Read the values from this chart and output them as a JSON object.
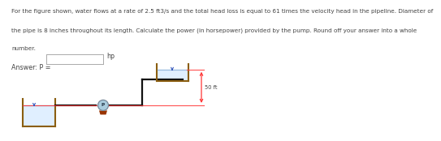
{
  "title_line1": "For the figure shown, water flows at a rate of 2.5 ft3/s and the total head loss is equal to 61 times the velocity head in the pipeline. Diameter of",
  "title_line2": "the pipe is 8 inches throughout its length. Calculate the power (in horsepower) provided by the pump. Round off your answer into a whole",
  "title_line3": "number.",
  "answer_label": "Answer: P =",
  "answer_unit": "hp",
  "dim_label": "50 ft",
  "bg_color": "#ffffff",
  "pipe_color": "#111111",
  "tank_color": "#8B5E10",
  "water_fill_color": "#ddeeff",
  "water_line_color": "#99bbdd",
  "dim_line_color": "#ff3333",
  "pump_body_color": "#aaccdd",
  "pump_edge_color": "#778899",
  "pump_base_color": "#993300",
  "arrow_color": "#3355bb",
  "text_color": "#444444",
  "text_fontsize": 5.2,
  "answer_fontsize": 5.8,
  "dim_fontsize": 4.8
}
